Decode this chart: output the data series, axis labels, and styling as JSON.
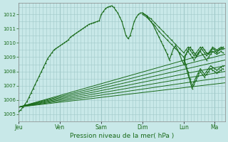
{
  "background_color": "#c8e8e8",
  "plot_bg_color": "#c8e8e8",
  "grid_color": "#a0c8c8",
  "line_color": "#1a6b1a",
  "ylim": [
    1004.5,
    1012.8
  ],
  "yticks": [
    1005,
    1006,
    1007,
    1008,
    1009,
    1010,
    1011,
    1012
  ],
  "xlabel": "Pression niveau de la mer( hPa )",
  "x_day_labels": [
    "Jeu",
    "Ven",
    "Sam",
    "Dim",
    "Lun",
    "Ma"
  ],
  "x_day_positions": [
    0,
    1,
    2,
    3,
    4,
    4.75
  ],
  "xlim": [
    0,
    5.0
  ],
  "detailed_line": [
    [
      0.0,
      1005.2
    ],
    [
      0.05,
      1005.3
    ],
    [
      0.1,
      1005.5
    ],
    [
      0.15,
      1005.7
    ],
    [
      0.2,
      1005.9
    ],
    [
      0.25,
      1006.2
    ],
    [
      0.3,
      1006.5
    ],
    [
      0.35,
      1006.8
    ],
    [
      0.4,
      1007.1
    ],
    [
      0.45,
      1007.4
    ],
    [
      0.5,
      1007.7
    ],
    [
      0.55,
      1008.0
    ],
    [
      0.6,
      1008.3
    ],
    [
      0.65,
      1008.6
    ],
    [
      0.7,
      1008.9
    ],
    [
      0.75,
      1009.1
    ],
    [
      0.8,
      1009.3
    ],
    [
      0.85,
      1009.5
    ],
    [
      0.9,
      1009.6
    ],
    [
      0.95,
      1009.7
    ],
    [
      1.0,
      1009.8
    ],
    [
      1.05,
      1009.9
    ],
    [
      1.1,
      1010.0
    ],
    [
      1.15,
      1010.1
    ],
    [
      1.2,
      1010.2
    ],
    [
      1.25,
      1010.4
    ],
    [
      1.3,
      1010.5
    ],
    [
      1.35,
      1010.6
    ],
    [
      1.4,
      1010.7
    ],
    [
      1.45,
      1010.8
    ],
    [
      1.5,
      1010.9
    ],
    [
      1.55,
      1011.0
    ],
    [
      1.6,
      1011.1
    ],
    [
      1.65,
      1011.2
    ],
    [
      1.7,
      1011.3
    ],
    [
      1.75,
      1011.35
    ],
    [
      1.8,
      1011.4
    ],
    [
      1.85,
      1011.45
    ],
    [
      1.9,
      1011.5
    ],
    [
      1.95,
      1011.55
    ],
    [
      2.0,
      1012.0
    ],
    [
      2.05,
      1012.2
    ],
    [
      2.1,
      1012.4
    ],
    [
      2.15,
      1012.5
    ],
    [
      2.2,
      1012.55
    ],
    [
      2.25,
      1012.6
    ],
    [
      2.3,
      1012.5
    ],
    [
      2.35,
      1012.3
    ],
    [
      2.4,
      1012.1
    ],
    [
      2.45,
      1011.8
    ],
    [
      2.5,
      1011.5
    ],
    [
      2.55,
      1011.0
    ],
    [
      2.6,
      1010.5
    ],
    [
      2.65,
      1010.3
    ],
    [
      2.7,
      1010.5
    ],
    [
      2.75,
      1011.0
    ],
    [
      2.8,
      1011.5
    ],
    [
      2.85,
      1011.8
    ],
    [
      2.9,
      1012.0
    ],
    [
      2.95,
      1012.1
    ],
    [
      3.0,
      1012.1
    ],
    [
      3.05,
      1012.0
    ],
    [
      3.1,
      1011.9
    ],
    [
      3.15,
      1011.7
    ],
    [
      3.2,
      1011.5
    ],
    [
      3.25,
      1011.3
    ],
    [
      3.3,
      1011.0
    ],
    [
      3.35,
      1010.7
    ],
    [
      3.4,
      1010.4
    ],
    [
      3.45,
      1010.1
    ],
    [
      3.5,
      1009.8
    ],
    [
      3.55,
      1009.5
    ],
    [
      3.6,
      1009.2
    ],
    [
      3.65,
      1008.8
    ],
    [
      3.7,
      1009.2
    ],
    [
      3.75,
      1009.6
    ],
    [
      3.8,
      1009.8
    ],
    [
      3.85,
      1009.5
    ],
    [
      3.9,
      1009.2
    ],
    [
      3.95,
      1008.8
    ],
    [
      4.0,
      1008.5
    ],
    [
      4.05,
      1009.2
    ],
    [
      4.1,
      1009.5
    ],
    [
      4.15,
      1009.7
    ],
    [
      4.2,
      1009.5
    ],
    [
      4.25,
      1009.3
    ],
    [
      4.3,
      1009.1
    ],
    [
      4.35,
      1009.3
    ],
    [
      4.4,
      1009.5
    ],
    [
      4.45,
      1009.7
    ],
    [
      4.5,
      1009.5
    ],
    [
      4.55,
      1009.3
    ],
    [
      4.6,
      1009.2
    ],
    [
      4.65,
      1009.4
    ],
    [
      4.7,
      1009.6
    ],
    [
      4.75,
      1009.5
    ],
    [
      4.8,
      1009.3
    ],
    [
      4.85,
      1009.5
    ],
    [
      4.9,
      1009.6
    ],
    [
      4.95,
      1009.7
    ]
  ],
  "forecast_lines": [
    {
      "x0": 0.0,
      "y0": 1005.5,
      "x1": 5.0,
      "y1": 1009.6
    },
    {
      "x0": 0.0,
      "y0": 1005.5,
      "x1": 5.0,
      "y1": 1009.2
    },
    {
      "x0": 0.0,
      "y0": 1005.5,
      "x1": 5.0,
      "y1": 1008.8
    },
    {
      "x0": 0.0,
      "y0": 1005.5,
      "x1": 5.0,
      "y1": 1008.4
    },
    {
      "x0": 0.0,
      "y0": 1005.5,
      "x1": 5.0,
      "y1": 1008.0
    },
    {
      "x0": 0.0,
      "y0": 1005.5,
      "x1": 5.0,
      "y1": 1007.6
    },
    {
      "x0": 0.0,
      "y0": 1005.5,
      "x1": 5.0,
      "y1": 1007.2
    }
  ],
  "extra_wiggly_lines": [
    {
      "points": [
        [
          3.0,
          1012.1
        ],
        [
          3.1,
          1011.9
        ],
        [
          3.2,
          1011.7
        ],
        [
          3.3,
          1011.4
        ],
        [
          3.4,
          1011.1
        ],
        [
          3.5,
          1010.8
        ],
        [
          3.6,
          1010.5
        ],
        [
          3.7,
          1010.2
        ],
        [
          3.8,
          1009.9
        ],
        [
          3.9,
          1009.6
        ],
        [
          4.0,
          1009.3
        ],
        [
          4.05,
          1009.5
        ],
        [
          4.1,
          1009.7
        ],
        [
          4.15,
          1009.5
        ],
        [
          4.2,
          1009.3
        ],
        [
          4.25,
          1009.1
        ],
        [
          4.3,
          1009.3
        ],
        [
          4.35,
          1009.5
        ],
        [
          4.4,
          1009.7
        ],
        [
          4.45,
          1009.5
        ],
        [
          4.5,
          1009.3
        ],
        [
          4.55,
          1009.1
        ],
        [
          4.6,
          1009.3
        ],
        [
          4.65,
          1009.5
        ],
        [
          4.7,
          1009.7
        ],
        [
          4.75,
          1009.6
        ],
        [
          4.8,
          1009.5
        ],
        [
          4.85,
          1009.6
        ],
        [
          4.9,
          1009.7
        ],
        [
          4.95,
          1009.6
        ]
      ]
    },
    {
      "points": [
        [
          3.0,
          1012.0
        ],
        [
          3.1,
          1011.8
        ],
        [
          3.2,
          1011.5
        ],
        [
          3.3,
          1011.2
        ],
        [
          3.4,
          1010.8
        ],
        [
          3.5,
          1010.5
        ],
        [
          3.6,
          1010.2
        ],
        [
          3.7,
          1009.9
        ],
        [
          3.8,
          1009.6
        ],
        [
          3.9,
          1009.3
        ],
        [
          4.0,
          1009.0
        ],
        [
          4.05,
          1009.2
        ],
        [
          4.1,
          1009.4
        ],
        [
          4.15,
          1009.2
        ],
        [
          4.2,
          1009.0
        ],
        [
          4.25,
          1008.8
        ],
        [
          4.3,
          1009.0
        ],
        [
          4.35,
          1009.2
        ],
        [
          4.4,
          1009.4
        ],
        [
          4.45,
          1009.2
        ],
        [
          4.5,
          1009.0
        ],
        [
          4.55,
          1008.8
        ],
        [
          4.6,
          1009.0
        ],
        [
          4.65,
          1009.2
        ],
        [
          4.7,
          1009.4
        ],
        [
          4.75,
          1009.3
        ],
        [
          4.8,
          1009.2
        ],
        [
          4.85,
          1009.3
        ],
        [
          4.9,
          1009.4
        ],
        [
          4.95,
          1009.3
        ]
      ]
    },
    {
      "points": [
        [
          4.0,
          1009.0
        ],
        [
          4.05,
          1008.5
        ],
        [
          4.1,
          1008.0
        ],
        [
          4.15,
          1007.5
        ],
        [
          4.2,
          1007.0
        ],
        [
          4.25,
          1007.3
        ],
        [
          4.3,
          1007.6
        ],
        [
          4.35,
          1007.9
        ],
        [
          4.4,
          1008.2
        ],
        [
          4.45,
          1008.0
        ],
        [
          4.5,
          1007.8
        ],
        [
          4.55,
          1008.0
        ],
        [
          4.6,
          1008.2
        ],
        [
          4.65,
          1008.4
        ],
        [
          4.7,
          1008.3
        ],
        [
          4.75,
          1008.2
        ],
        [
          4.8,
          1008.1
        ],
        [
          4.85,
          1008.2
        ],
        [
          4.9,
          1008.3
        ],
        [
          4.95,
          1008.4
        ]
      ]
    },
    {
      "points": [
        [
          4.0,
          1008.8
        ],
        [
          4.05,
          1008.3
        ],
        [
          4.1,
          1007.8
        ],
        [
          4.15,
          1007.3
        ],
        [
          4.2,
          1006.8
        ],
        [
          4.25,
          1007.1
        ],
        [
          4.3,
          1007.4
        ],
        [
          4.35,
          1007.7
        ],
        [
          4.4,
          1008.0
        ],
        [
          4.45,
          1007.8
        ],
        [
          4.5,
          1007.6
        ],
        [
          4.55,
          1007.8
        ],
        [
          4.6,
          1008.0
        ],
        [
          4.65,
          1008.2
        ],
        [
          4.7,
          1008.1
        ],
        [
          4.75,
          1008.0
        ],
        [
          4.8,
          1007.9
        ],
        [
          4.85,
          1008.0
        ],
        [
          4.9,
          1008.1
        ],
        [
          4.95,
          1008.2
        ]
      ]
    }
  ]
}
